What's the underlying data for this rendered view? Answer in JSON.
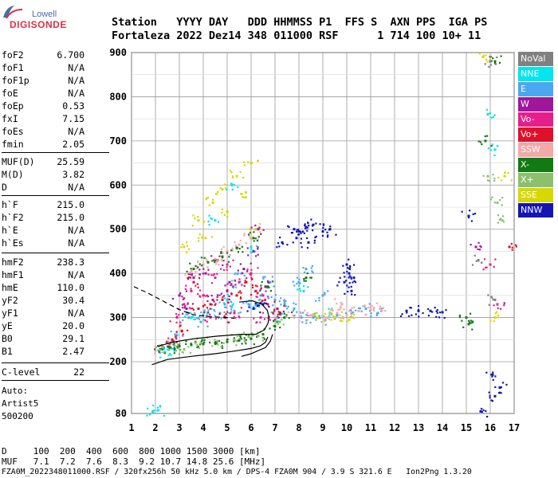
{
  "logo": {
    "top": "Lowell",
    "main": "DIGISONDE"
  },
  "header": {
    "labels": "Station   YYYY DAY   DDD HHMMSS P1  FFS S  AXN PPS  IGA PS",
    "values": "Fortaleza 2022 Dez14 348 011000 RSF      1 714 100 10+ 11"
  },
  "params": [
    {
      "k": "foF2",
      "v": "6.700"
    },
    {
      "k": "foF1",
      "v": "N/A"
    },
    {
      "k": "foF1p",
      "v": "N/A"
    },
    {
      "k": "foE",
      "v": "N/A"
    },
    {
      "k": "foEp",
      "v": "0.53"
    },
    {
      "k": "fxI",
      "v": "7.15"
    },
    {
      "k": "foEs",
      "v": "N/A"
    },
    {
      "k": "fmin",
      "v": "2.05"
    },
    {
      "k": "MUF(D)",
      "v": "25.59"
    },
    {
      "k": "M(D)",
      "v": "3.82"
    },
    {
      "k": "D",
      "v": "N/A"
    },
    {
      "k": "h`F",
      "v": "215.0"
    },
    {
      "k": "h`F2",
      "v": "215.0"
    },
    {
      "k": "h`E",
      "v": "N/A"
    },
    {
      "k": "h`Es",
      "v": "N/A"
    },
    {
      "k": "hmF2",
      "v": "238.3"
    },
    {
      "k": "hmF1",
      "v": "N/A"
    },
    {
      "k": "hmE",
      "v": "110.0"
    },
    {
      "k": "yF2",
      "v": "30.4"
    },
    {
      "k": "yF1",
      "v": "N/A"
    },
    {
      "k": "yE",
      "v": "20.0"
    },
    {
      "k": "B0",
      "v": "29.1"
    },
    {
      "k": "B1",
      "v": "2.47"
    },
    {
      "k": "C-level",
      "v": "22"
    }
  ],
  "autoscale": {
    "line1": "Auto:",
    "line2": "Artist5",
    "line3": "500200"
  },
  "footer": {
    "d_row": "D     100  200  400  600  800 1000 1500 3000 [km]",
    "muf_row": "MUF   7.1  7.2  7.6  8.3  9.2 10.7 14.8 25.6 [MHz]",
    "file_row": "FZA0M_2022348011000.RSF / 320fx256h 50 kHz 5.0 km / DPS-4 FZA0M 904 / 3.9 S 321.6 E   Ion2Png 1.3.20"
  },
  "legend": [
    {
      "label": "NoVal",
      "color": "#808080"
    },
    {
      "label": "NNE",
      "color": "#00e5ee"
    },
    {
      "label": "E",
      "color": "#4aa8f0"
    },
    {
      "label": "W",
      "color": "#a0169c"
    },
    {
      "label": "Vo-",
      "color": "#e61e8c"
    },
    {
      "label": "Vo+",
      "color": "#e0102a"
    },
    {
      "label": "SSW",
      "color": "#f4a8a8"
    },
    {
      "label": "X-",
      "color": "#127a12"
    },
    {
      "label": "X+",
      "color": "#8cc06c"
    },
    {
      "label": "SSE",
      "color": "#d8d800"
    },
    {
      "label": "NNW",
      "color": "#1414b4"
    }
  ],
  "chart_data": {
    "type": "scatter",
    "xlabel": "",
    "ylabel": "",
    "xlim": [
      1,
      17
    ],
    "ylim": [
      80,
      900
    ],
    "x_ticks": [
      "1",
      "2",
      "3",
      "4",
      "5",
      "6",
      "7",
      "8",
      "9",
      "10",
      "11",
      "12",
      "13",
      "14",
      "15",
      "16",
      "17"
    ],
    "y_ticks": [
      "80",
      "200",
      "300",
      "400",
      "500",
      "600",
      "700",
      "800",
      "900"
    ],
    "grid": true,
    "legend_position": "right",
    "series": [
      {
        "name": "NNE",
        "points": [
          [
            1.9,
            85
          ],
          [
            2.1,
            87
          ],
          [
            2.4,
            222
          ],
          [
            2.8,
            225
          ],
          [
            3.5,
            300
          ],
          [
            4.2,
            310
          ],
          [
            5.0,
            340
          ],
          [
            5.5,
            380
          ],
          [
            6.2,
            330
          ],
          [
            7.1,
            300
          ],
          [
            8.2,
            360
          ],
          [
            9.3,
            310
          ],
          [
            4.5,
            520
          ],
          [
            5.2,
            600
          ],
          [
            6.0,
            460
          ],
          [
            15.9,
            760
          ],
          [
            16.2,
            680
          ]
        ]
      },
      {
        "name": "E",
        "points": [
          [
            2.3,
            230
          ],
          [
            2.9,
            260
          ],
          [
            3.4,
            300
          ],
          [
            4.0,
            305
          ],
          [
            4.7,
            310
          ],
          [
            5.3,
            315
          ],
          [
            5.9,
            330
          ],
          [
            6.4,
            350
          ],
          [
            7.0,
            340
          ],
          [
            7.4,
            330
          ],
          [
            7.8,
            320
          ],
          [
            8.1,
            300
          ],
          [
            8.6,
            300
          ],
          [
            9.1,
            295
          ],
          [
            9.6,
            305
          ],
          [
            10.2,
            310
          ],
          [
            10.8,
            320
          ],
          [
            11.3,
            310
          ],
          [
            8.3,
            410
          ],
          [
            8.0,
            380
          ],
          [
            9.0,
            350
          ],
          [
            6.8,
            380
          ],
          [
            5.6,
            400
          ],
          [
            4.9,
            330
          ],
          [
            3.9,
            290
          ]
        ]
      },
      {
        "name": "W",
        "points": [
          [
            2.6,
            240
          ],
          [
            3.0,
            350
          ],
          [
            3.6,
            390
          ],
          [
            4.1,
            400
          ],
          [
            4.6,
            430
          ],
          [
            5.1,
            380
          ],
          [
            5.7,
            410
          ],
          [
            6.1,
            450
          ],
          [
            6.6,
            370
          ],
          [
            7.2,
            310
          ],
          [
            3.3,
            320
          ],
          [
            4.4,
            340
          ],
          [
            5.0,
            360
          ],
          [
            6.3,
            500
          ],
          [
            15.4,
            460
          ]
        ]
      },
      {
        "name": "Vo-",
        "points": [
          [
            2.5,
            245
          ],
          [
            2.9,
            300
          ],
          [
            3.5,
            360
          ],
          [
            4.0,
            350
          ],
          [
            4.5,
            390
          ],
          [
            5.0,
            420
          ],
          [
            5.5,
            380
          ],
          [
            6.0,
            400
          ],
          [
            6.5,
            350
          ],
          [
            3.2,
            330
          ],
          [
            4.3,
            300
          ],
          [
            5.3,
            310
          ],
          [
            6.4,
            300
          ],
          [
            7.0,
            295
          ],
          [
            16.3,
            330
          ],
          [
            16.0,
            420
          ]
        ]
      },
      {
        "name": "Vo+",
        "points": [
          [
            2.7,
            250
          ],
          [
            3.1,
            270
          ],
          [
            3.8,
            320
          ],
          [
            4.3,
            330
          ],
          [
            4.8,
            340
          ],
          [
            5.4,
            350
          ],
          [
            5.8,
            380
          ],
          [
            6.2,
            360
          ],
          [
            6.7,
            330
          ],
          [
            7.1,
            320
          ],
          [
            16.8,
            460
          ],
          [
            3.6,
            380
          ],
          [
            4.9,
            300
          ]
        ]
      },
      {
        "name": "SSW",
        "points": [
          [
            2.0,
            225
          ],
          [
            3.5,
            405
          ],
          [
            4.0,
            420
          ],
          [
            4.5,
            432
          ],
          [
            5.0,
            450
          ],
          [
            5.5,
            465
          ],
          [
            6.0,
            478
          ],
          [
            9.2,
            300
          ],
          [
            9.6,
            310
          ],
          [
            10.0,
            305
          ],
          [
            10.5,
            315
          ],
          [
            11.0,
            318
          ],
          [
            11.4,
            320
          ],
          [
            9.8,
            330
          ],
          [
            7.8,
            300
          ],
          [
            8.5,
            305
          ]
        ]
      },
      {
        "name": "X-",
        "points": [
          [
            2.2,
            228
          ],
          [
            2.6,
            232
          ],
          [
            3.0,
            235
          ],
          [
            3.5,
            238
          ],
          [
            4.0,
            240
          ],
          [
            4.5,
            242
          ],
          [
            5.0,
            245
          ],
          [
            5.5,
            248
          ],
          [
            6.0,
            252
          ],
          [
            6.5,
            262
          ],
          [
            7.0,
            280
          ],
          [
            7.4,
            300
          ],
          [
            3.6,
            410
          ],
          [
            4.2,
            425
          ],
          [
            4.8,
            438
          ],
          [
            5.4,
            458
          ],
          [
            6.1,
            480
          ],
          [
            15.0,
            300
          ],
          [
            15.1,
            285
          ],
          [
            15.8,
            700
          ],
          [
            16.2,
            880
          ],
          [
            8.3,
            390
          ],
          [
            6.7,
            370
          ]
        ]
      },
      {
        "name": "X+",
        "points": [
          [
            2.3,
            234
          ],
          [
            2.8,
            236
          ],
          [
            3.2,
            228
          ],
          [
            3.9,
            242
          ],
          [
            4.6,
            246
          ],
          [
            5.3,
            250
          ],
          [
            5.9,
            256
          ],
          [
            6.3,
            258
          ],
          [
            7.2,
            290
          ],
          [
            15.9,
            620
          ],
          [
            16.3,
            560
          ],
          [
            16.5,
            520
          ]
        ]
      },
      {
        "name": "SSE",
        "points": [
          [
            3.2,
            460
          ],
          [
            3.8,
            520
          ],
          [
            4.4,
            560
          ],
          [
            5.0,
            540
          ],
          [
            5.6,
            580
          ],
          [
            6.2,
            500
          ],
          [
            4.1,
            480
          ],
          [
            5.4,
            620
          ],
          [
            6.0,
            650
          ],
          [
            4.8,
            590
          ],
          [
            8.8,
            300
          ],
          [
            9.5,
            300
          ],
          [
            10.1,
            295
          ],
          [
            15.7,
            890
          ],
          [
            16.2,
            300
          ],
          [
            16.6,
            620
          ]
        ]
      },
      {
        "name": "NNW",
        "points": [
          [
            7.8,
            500
          ],
          [
            8.0,
            495
          ],
          [
            8.3,
            505
          ],
          [
            8.6,
            510
          ],
          [
            9.0,
            495
          ],
          [
            9.3,
            500
          ],
          [
            7.9,
            480
          ],
          [
            8.4,
            470
          ],
          [
            9.9,
            380
          ],
          [
            10.1,
            400
          ],
          [
            10.0,
            420
          ],
          [
            10.2,
            360
          ],
          [
            10.3,
            390
          ],
          [
            12.5,
            315
          ],
          [
            13.0,
            315
          ],
          [
            13.5,
            315
          ],
          [
            14.0,
            312
          ],
          [
            6.1,
            320
          ],
          [
            6.5,
            330
          ],
          [
            7.3,
            470
          ],
          [
            16.1,
            170
          ],
          [
            16.2,
            120
          ],
          [
            16.4,
            140
          ],
          [
            15.6,
            85
          ],
          [
            15.1,
            530
          ]
        ]
      },
      {
        "name": "NoVal",
        "points": [
          [
            15.5,
            430
          ],
          [
            16.2,
            340
          ],
          [
            16.0,
            880
          ]
        ]
      }
    ],
    "trace_f2": [
      [
        1.85,
        193
      ],
      [
        2.5,
        205
      ],
      [
        3.5,
        212
      ],
      [
        4.5,
        218
      ],
      [
        5.3,
        224
      ],
      [
        6.0,
        230
      ],
      [
        6.4,
        236
      ],
      [
        6.6,
        244
      ],
      [
        6.7,
        256
      ]
    ],
    "trace_f2_upper": [
      [
        5.6,
        212
      ],
      [
        6.0,
        218
      ],
      [
        6.3,
        225
      ],
      [
        6.6,
        232
      ],
      [
        6.8,
        246
      ],
      [
        6.9,
        262
      ]
    ],
    "profile": [
      [
        2.1,
        235
      ],
      [
        2.8,
        245
      ],
      [
        3.6,
        252
      ],
      [
        4.6,
        258
      ],
      [
        5.6,
        262
      ],
      [
        6.2,
        262
      ],
      [
        6.55,
        272
      ],
      [
        6.7,
        286
      ],
      [
        6.75,
        300
      ],
      [
        6.68,
        316
      ],
      [
        6.45,
        330
      ],
      [
        6.05,
        338
      ],
      [
        5.5,
        335
      ]
    ],
    "profile_dashed": [
      [
        1.1,
        370
      ],
      [
        1.7,
        355
      ],
      [
        2.4,
        335
      ],
      [
        3.0,
        318
      ],
      [
        3.6,
        306
      ],
      [
        4.3,
        302
      ],
      [
        5.0,
        300
      ],
      [
        5.3,
        298
      ]
    ]
  }
}
